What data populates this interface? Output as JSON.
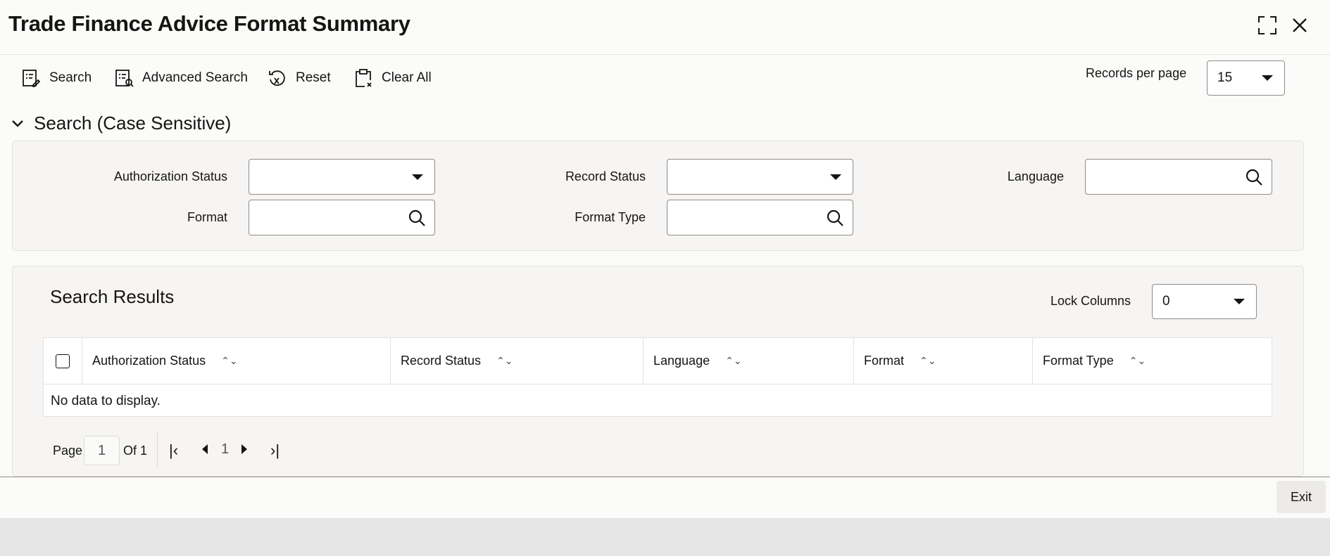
{
  "header": {
    "title": "Trade Finance Advice Format Summary",
    "icons": [
      "expand-icon",
      "close-icon"
    ]
  },
  "toolbar": {
    "search": "Search",
    "advanced_search": "Advanced Search",
    "reset": "Reset",
    "clear_all": "Clear All",
    "records_per_page_label": "Records per page",
    "records_per_page_value": "15"
  },
  "search_section": {
    "title": "Search (Case Sensitive)",
    "fields": {
      "authorization_status": "Authorization Status",
      "record_status": "Record Status",
      "language": "Language",
      "format": "Format",
      "format_type": "Format Type"
    }
  },
  "results": {
    "title": "Search Results",
    "lock_columns_label": "Lock Columns",
    "lock_columns_value": "0",
    "columns": [
      "Authorization Status",
      "Record Status",
      "Language",
      "Format",
      "Format Type"
    ],
    "empty_message": "No data to display."
  },
  "pagination": {
    "page_label": "Page",
    "page_value": "1",
    "of_label": "Of 1",
    "current_page": "1"
  },
  "footer": {
    "exit": "Exit"
  }
}
